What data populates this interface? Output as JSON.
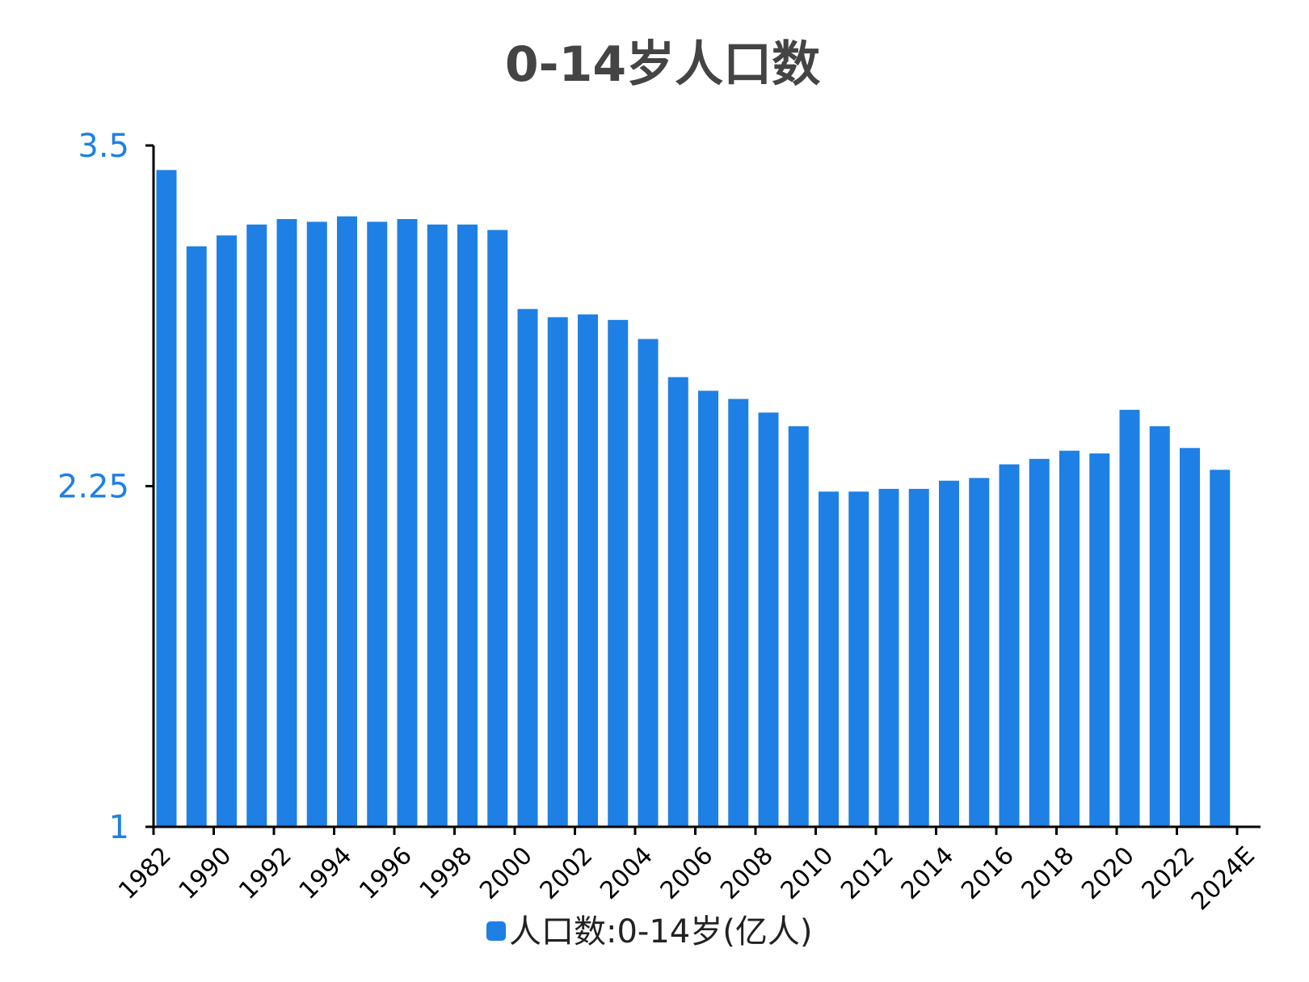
{
  "chart_data": {
    "type": "bar",
    "title": "0-14岁人口数",
    "xlabel": "",
    "ylabel": "",
    "ylim": [
      1,
      3.5
    ],
    "yticks": [
      "1",
      "2.25",
      "3.5"
    ],
    "categories": [
      "1982",
      "1990",
      "1991",
      "1992",
      "1993",
      "1994",
      "1995",
      "1996",
      "1997",
      "1998",
      "1999",
      "2000",
      "2001",
      "2002",
      "2003",
      "2004",
      "2005",
      "2006",
      "2007",
      "2008",
      "2009",
      "2010",
      "2011",
      "2012",
      "2013",
      "2014",
      "2015",
      "2016",
      "2017",
      "2018",
      "2019",
      "2020",
      "2021",
      "2022",
      "2023",
      "2024E"
    ],
    "xtick_labels": [
      "1982",
      "1990",
      "1992",
      "1994",
      "1996",
      "1998",
      "2000",
      "2002",
      "2004",
      "2006",
      "2008",
      "2010",
      "2012",
      "2014",
      "2016",
      "2018",
      "2020",
      "2022",
      "2024E"
    ],
    "series": [
      {
        "name": "人口数:0-14岁(亿人)",
        "color": "#1e80e4",
        "values": [
          3.41,
          3.13,
          3.17,
          3.21,
          3.23,
          3.22,
          3.24,
          3.22,
          3.23,
          3.21,
          3.21,
          3.19,
          2.9,
          2.87,
          2.88,
          2.86,
          2.79,
          2.65,
          2.6,
          2.57,
          2.52,
          2.47,
          2.23,
          2.23,
          2.24,
          2.24,
          2.27,
          2.28,
          2.33,
          2.35,
          2.38,
          2.37,
          2.53,
          2.47,
          2.39,
          2.31
        ]
      }
    ],
    "legend_position": "bottom-center",
    "grid": false
  }
}
